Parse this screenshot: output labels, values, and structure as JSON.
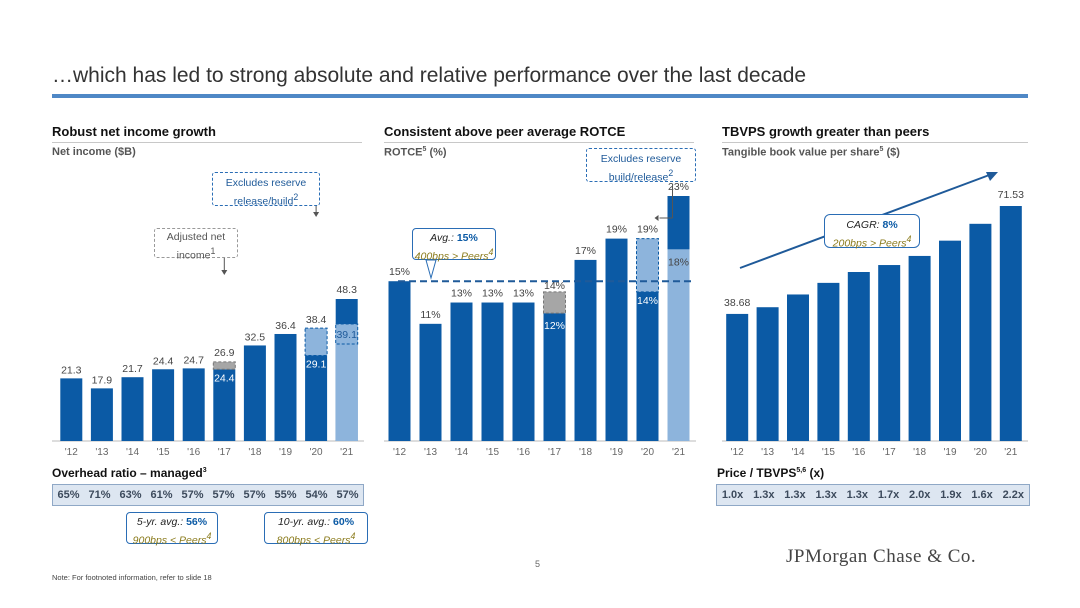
{
  "title": "…which has led to strong absolute and relative performance over the last decade",
  "panels": {
    "ni": {
      "title": "Robust net income growth",
      "subtitle": "Net income ($B)"
    },
    "rotce": {
      "title": "Consistent above peer average ROTCE",
      "subtitle": "ROTCE",
      "subtitle_sup": "5",
      "subtitle_tail": " (%)"
    },
    "tbvps": {
      "title": "TBVPS growth greater than peers",
      "subtitle": "Tangible book value per share",
      "subtitle_sup": "5",
      "subtitle_tail": " ($)"
    }
  },
  "overhead": {
    "title": "Overhead ratio – managed",
    "title_sup": "3",
    "values": [
      "65%",
      "71%",
      "63%",
      "61%",
      "57%",
      "57%",
      "57%",
      "55%",
      "54%",
      "57%"
    ],
    "avg5": {
      "label": "5-yr. avg.: ",
      "value": "56%",
      "line2": "900bps < Peers",
      "sup": "4"
    },
    "avg10": {
      "label": "10-yr. avg.: ",
      "value": "60%",
      "line2": "800bps < Peers",
      "sup": "4"
    }
  },
  "price": {
    "title": "Price / TBVPS",
    "title_sup": "5,6",
    "title_tail": " (x)",
    "values": [
      "1.0x",
      "1.3x",
      "1.3x",
      "1.3x",
      "1.3x",
      "1.7x",
      "2.0x",
      "1.9x",
      "1.6x",
      "2.2x"
    ]
  },
  "callouts": {
    "ni_reserve": {
      "line1": "Excludes reserve",
      "line2": "release/build",
      "sup": "2"
    },
    "ni_adjusted": {
      "line1": "Adjusted net",
      "line2": "income",
      "sup": "1"
    },
    "rotce_avg": {
      "label": "Avg.: ",
      "value": "15%",
      "line2": "400bps > Peers",
      "sup": "4"
    },
    "rotce_reserve": {
      "line1": "Excludes reserve",
      "line2": "build/release",
      "sup": "2"
    },
    "tbvps_cagr": {
      "label": "CAGR: ",
      "value": "8%",
      "line2": "200bps > Peers",
      "sup": "4"
    }
  },
  "colors": {
    "bar": "#0b5aa5",
    "bar_light": "#8db4dc",
    "bar_gray": "#a6a6a6",
    "title_rule": "#4f88c6",
    "strip_bg": "#dde6f1"
  },
  "page_number": "5",
  "logo": "JPMorgan Chase & Co.",
  "note": "Note: For footnoted information, refer to slide 18",
  "chart_data": [
    {
      "type": "bar",
      "title": "Robust net income growth",
      "ylabel": "Net income ($B)",
      "categories": [
        "'12",
        "'13",
        "'14",
        "'15",
        "'16",
        "'17",
        "'18",
        "'19",
        "'20",
        "'21"
      ],
      "values": [
        21.3,
        17.9,
        21.7,
        24.4,
        24.7,
        24.4,
        32.5,
        36.4,
        29.1,
        48.3
      ],
      "value_labels": [
        "21.3",
        "17.9",
        "21.7",
        "24.4",
        "24.7",
        "24.4",
        "32.5",
        "36.4",
        "29.1",
        "48.3"
      ],
      "adjusted": {
        "category": "'17",
        "value": 26.9,
        "label": "26.9"
      },
      "excl_reserve": [
        {
          "category": "'20",
          "value": 38.4,
          "label": "38.4"
        },
        {
          "category": "'21",
          "value": 39.1,
          "label": "39.1"
        }
      ],
      "ylim": [
        0,
        50
      ]
    },
    {
      "type": "bar",
      "title": "Consistent above peer average ROTCE",
      "ylabel": "ROTCE (%)",
      "categories": [
        "'12",
        "'13",
        "'14",
        "'15",
        "'16",
        "'17",
        "'18",
        "'19",
        "'20",
        "'21"
      ],
      "values": [
        15,
        11,
        13,
        13,
        13,
        12,
        17,
        19,
        14,
        23
      ],
      "value_labels": [
        "15%",
        "11%",
        "13%",
        "13%",
        "13%",
        "12%",
        "17%",
        "19%",
        "14%",
        "23%"
      ],
      "adjusted": {
        "category": "'17",
        "value": 14,
        "label": "14%"
      },
      "excl_reserve": [
        {
          "category": "'20",
          "value": 19,
          "label": "19%"
        },
        {
          "category": "'21",
          "value": 18,
          "label": "18%"
        }
      ],
      "average": 15,
      "ylim": [
        0,
        25
      ]
    },
    {
      "type": "bar",
      "title": "TBVPS growth greater than peers",
      "ylabel": "Tangible book value per share ($)",
      "categories": [
        "'12",
        "'13",
        "'14",
        "'15",
        "'16",
        "'17",
        "'18",
        "'19",
        "'20",
        "'21"
      ],
      "values": [
        38.68,
        40.72,
        44.6,
        48.13,
        51.44,
        53.56,
        56.33,
        60.98,
        66.11,
        71.53
      ],
      "value_labels": [
        "38.68",
        "",
        "",
        "",
        "",
        "",
        "",
        "",
        "",
        "71.53"
      ],
      "ylim": [
        0,
        80
      ]
    }
  ]
}
